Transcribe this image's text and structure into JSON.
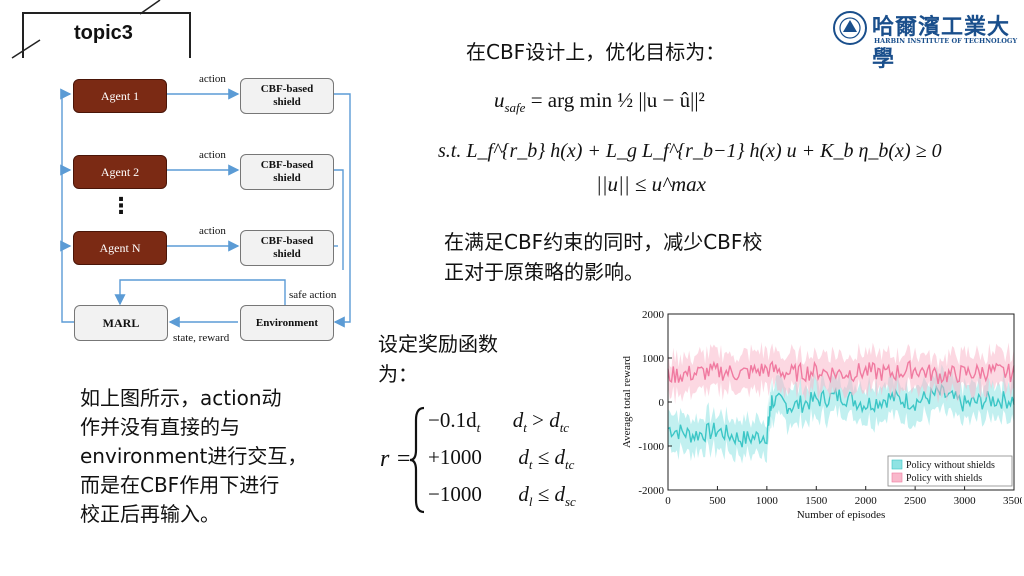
{
  "header": {
    "topic": "topic3"
  },
  "logo": {
    "cn": "哈爾濱工業大學",
    "en": "HARBIN INSTITUTE OF TECHNOLOGY",
    "color": "#1a4f8c"
  },
  "diagram": {
    "agents": [
      "Agent 1",
      "Agent 2",
      "Agent N"
    ],
    "shield": "CBF-based shield",
    "action": "action",
    "ellipsis": "⋮",
    "marl": "MARL",
    "environment": "Environment",
    "safe_action": "safe action",
    "state_reward": "state, reward",
    "colors": {
      "agent": "#7b2a14",
      "arrow": "#5b9bd5",
      "box": "#f2f2f2"
    }
  },
  "right": {
    "opt_title": "在CBF设计上，优化目标为：",
    "eq1_lhs": "u",
    "eq1_sub": "safe",
    "eq1_rhs": "= arg min ½ ||u − û||²",
    "eq2": "s.t.   L_f^{r_b} h(x) + L_g L_f^{r_b−1} h(x) u + K_b η_b(x) ≥ 0",
    "eq3": "||u|| ≤ u^max",
    "desc_line1": "在满足CBF约束的同时，减少CBF校",
    "desc_line2": "正对于原策略的影响。"
  },
  "reward": {
    "title_line1": "设定奖励函数",
    "title_line2": "为：",
    "cases": [
      {
        "value": "−0.1d",
        "value_sub": "t",
        "cond": "d",
        "cond_sub": "t",
        "op": ">",
        "rhs": "d",
        "rhs_sub": "tc"
      },
      {
        "value": "+1000",
        "value_sub": "",
        "cond": "d",
        "cond_sub": "t",
        "op": "≤",
        "rhs": "d",
        "rhs_sub": "tc"
      },
      {
        "value": "−1000",
        "value_sub": "",
        "cond": "d",
        "cond_sub": "l",
        "op": "≤",
        "rhs": "d",
        "rhs_sub": "sc"
      }
    ]
  },
  "left_text": [
    "如上图所示，action动",
    "作并没有直接的与",
    "environment进行交互，",
    "而是在CBF作用下进行",
    "校正后再输入。"
  ],
  "chart_data": {
    "type": "line",
    "xlabel": "Number of episodes",
    "ylabel": "Average total reward",
    "xlim": [
      0,
      3500
    ],
    "ylim": [
      -2000,
      2000
    ],
    "xticks": [
      0,
      500,
      1000,
      1500,
      2000,
      2500,
      3000,
      3500
    ],
    "yticks": [
      2000,
      1000,
      0,
      -1000,
      -2000
    ],
    "legend_position": "bottom-right",
    "series": [
      {
        "name": "Policy without shields",
        "color": "#3cc6c6",
        "band_color": "#8fe3e3",
        "x": [
          0,
          250,
          500,
          750,
          1000,
          1050,
          1250,
          1500,
          1750,
          2000,
          2250,
          2500,
          2750,
          3000,
          3250,
          3500
        ],
        "y": [
          -600,
          -750,
          -650,
          -850,
          -750,
          50,
          -100,
          50,
          150,
          -50,
          100,
          0,
          200,
          -50,
          50,
          50
        ]
      },
      {
        "name": "Policy with shields",
        "color": "#f07aa0",
        "band_color": "#f9b8cb",
        "x": [
          0,
          250,
          500,
          750,
          1000,
          1250,
          1500,
          1750,
          2000,
          2250,
          2500,
          2750,
          3000,
          3250,
          3500
        ],
        "y": [
          600,
          650,
          700,
          650,
          750,
          650,
          700,
          650,
          700,
          650,
          750,
          600,
          650,
          700,
          650
        ]
      }
    ]
  }
}
